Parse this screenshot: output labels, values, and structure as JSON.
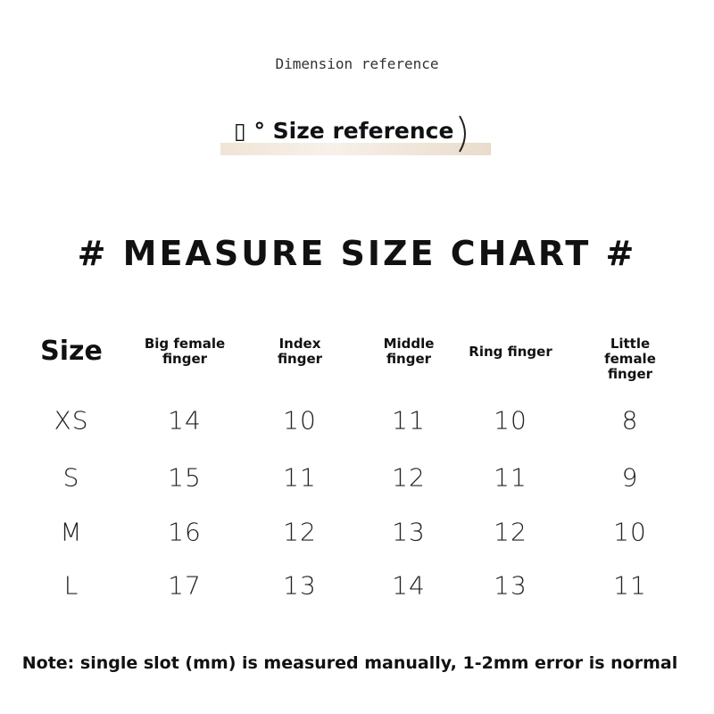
{
  "header": {
    "title": "Dimension reference",
    "banner": "▯ ° Size reference"
  },
  "heading": "# MEASURE SIZE CHART #",
  "table": {
    "columns": [
      "Size",
      "Big female finger",
      "Index finger",
      "Middle finger",
      "Ring finger",
      "Little female finger"
    ],
    "rows": [
      [
        "XS",
        "14",
        "10",
        "11",
        "10",
        "8"
      ],
      [
        "S",
        "15",
        "11",
        "12",
        "11",
        "9"
      ],
      [
        "M",
        "16",
        "12",
        "13",
        "12",
        "10"
      ],
      [
        "L",
        "17",
        "13",
        "14",
        "13",
        "11"
      ]
    ]
  },
  "note": "Note: single slot (mm) is measured manually, 1-2mm error is normal"
}
